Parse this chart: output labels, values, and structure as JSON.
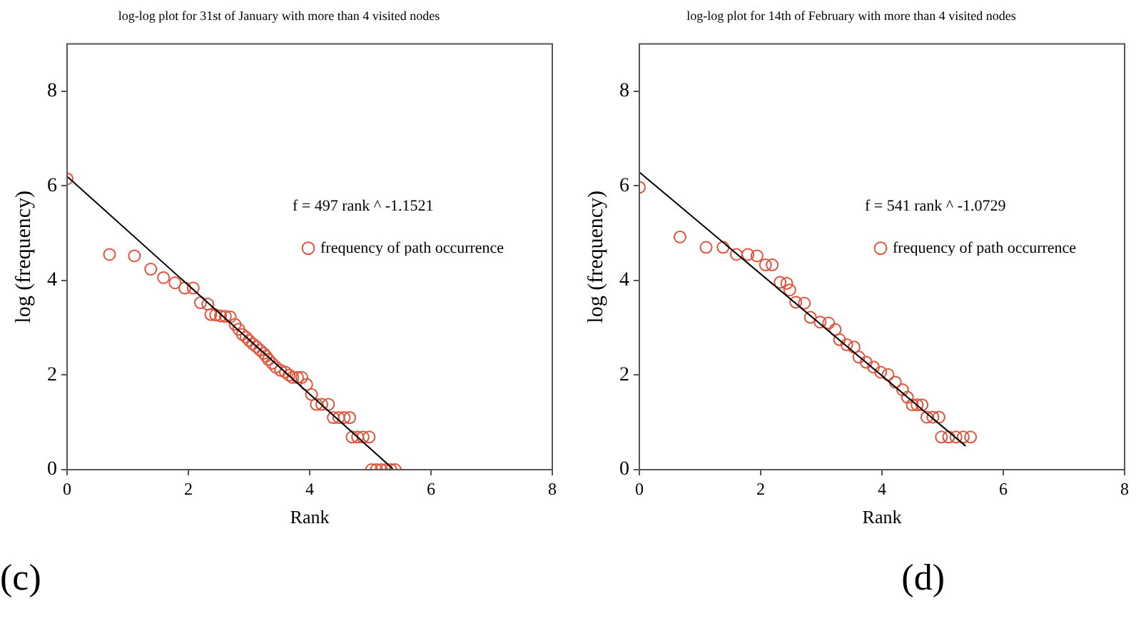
{
  "chart_data": [
    {
      "type": "scatter",
      "title": "log-log plot for 31st of January with more than 4 visited nodes",
      "xlabel": "Rank",
      "ylabel": "log (frequency)",
      "xlim": [
        0,
        8
      ],
      "ylim": [
        0,
        9
      ],
      "xticks": [
        0,
        2,
        4,
        6,
        8
      ],
      "yticks": [
        0,
        2,
        4,
        6,
        8
      ],
      "grid": false,
      "legend": "right",
      "annotations": [
        "f = 497 rank ^ -1.1521",
        "(c)"
      ],
      "series": [
        {
          "name": "frequency of path occurrence",
          "color": "#e0533c",
          "marker": "circle",
          "x": [
            0,
            0.7,
            1.11,
            1.38,
            1.59,
            1.78,
            1.94,
            2.08,
            2.2,
            2.32,
            2.37,
            2.45,
            2.53,
            2.61,
            2.69,
            2.77,
            2.83,
            2.89,
            2.95,
            3.0,
            3.06,
            3.12,
            3.18,
            3.24,
            3.28,
            3.32,
            3.38,
            3.44,
            3.52,
            3.6,
            3.66,
            3.72,
            3.8,
            3.87,
            3.95,
            4.03,
            4.11,
            4.2,
            4.31,
            4.39,
            4.48,
            4.57,
            4.66,
            4.7,
            4.79,
            4.88,
            4.98,
            5.02,
            5.1,
            5.18,
            5.26,
            5.34,
            5.41
          ],
          "values": [
            6.15,
            4.55,
            4.52,
            4.24,
            4.06,
            3.95,
            3.84,
            3.84,
            3.53,
            3.5,
            3.28,
            3.27,
            3.25,
            3.24,
            3.23,
            3.07,
            2.97,
            2.86,
            2.8,
            2.73,
            2.66,
            2.6,
            2.53,
            2.46,
            2.4,
            2.33,
            2.25,
            2.17,
            2.1,
            2.06,
            2.0,
            1.95,
            1.95,
            1.95,
            1.8,
            1.59,
            1.38,
            1.38,
            1.38,
            1.1,
            1.1,
            1.1,
            1.1,
            0.69,
            0.69,
            0.69,
            0.69,
            0,
            0,
            0,
            0,
            0,
            0
          ]
        },
        {
          "type": "line",
          "color": "#000000",
          "marker": "none",
          "x": [
            0,
            5.37
          ],
          "values": [
            6.2,
            0.02
          ]
        }
      ]
    },
    {
      "type": "scatter",
      "title": "log-log plot for 14th of February with more than 4 visited nodes",
      "xlabel": "Rank",
      "ylabel": "log (frequency)",
      "xlim": [
        0,
        8
      ],
      "ylim": [
        0,
        9
      ],
      "xticks": [
        0,
        2,
        4,
        6,
        8
      ],
      "yticks": [
        0,
        2,
        4,
        6,
        8
      ],
      "grid": false,
      "legend": "right",
      "annotations": [
        "f = 541 rank ^ -1.0729",
        "(d)"
      ],
      "series": [
        {
          "name": "frequency of path occurrence",
          "color": "#e0533c",
          "marker": "circle",
          "x": [
            0,
            0.67,
            1.1,
            1.38,
            1.6,
            1.79,
            1.94,
            2.08,
            2.19,
            2.32,
            2.43,
            2.48,
            2.58,
            2.72,
            2.82,
            2.98,
            3.12,
            3.23,
            3.3,
            3.42,
            3.54,
            3.62,
            3.74,
            3.86,
            3.98,
            4.1,
            4.22,
            4.34,
            4.42,
            4.5,
            4.58,
            4.66,
            4.74,
            4.84,
            4.94,
            4.98,
            5.1,
            5.22,
            5.34,
            5.46
          ],
          "values": [
            5.97,
            4.92,
            4.7,
            4.7,
            4.55,
            4.55,
            4.52,
            4.33,
            4.33,
            3.96,
            3.94,
            3.8,
            3.54,
            3.52,
            3.22,
            3.12,
            3.1,
            2.96,
            2.75,
            2.64,
            2.59,
            2.38,
            2.27,
            2.17,
            2.06,
            2.01,
            1.85,
            1.69,
            1.53,
            1.37,
            1.37,
            1.37,
            1.11,
            1.11,
            1.11,
            0.69,
            0.69,
            0.69,
            0.69,
            0.69
          ]
        },
        {
          "type": "line",
          "color": "#000000",
          "marker": "none",
          "x": [
            0,
            5.38
          ],
          "values": [
            6.29,
            0.5
          ]
        }
      ]
    }
  ]
}
